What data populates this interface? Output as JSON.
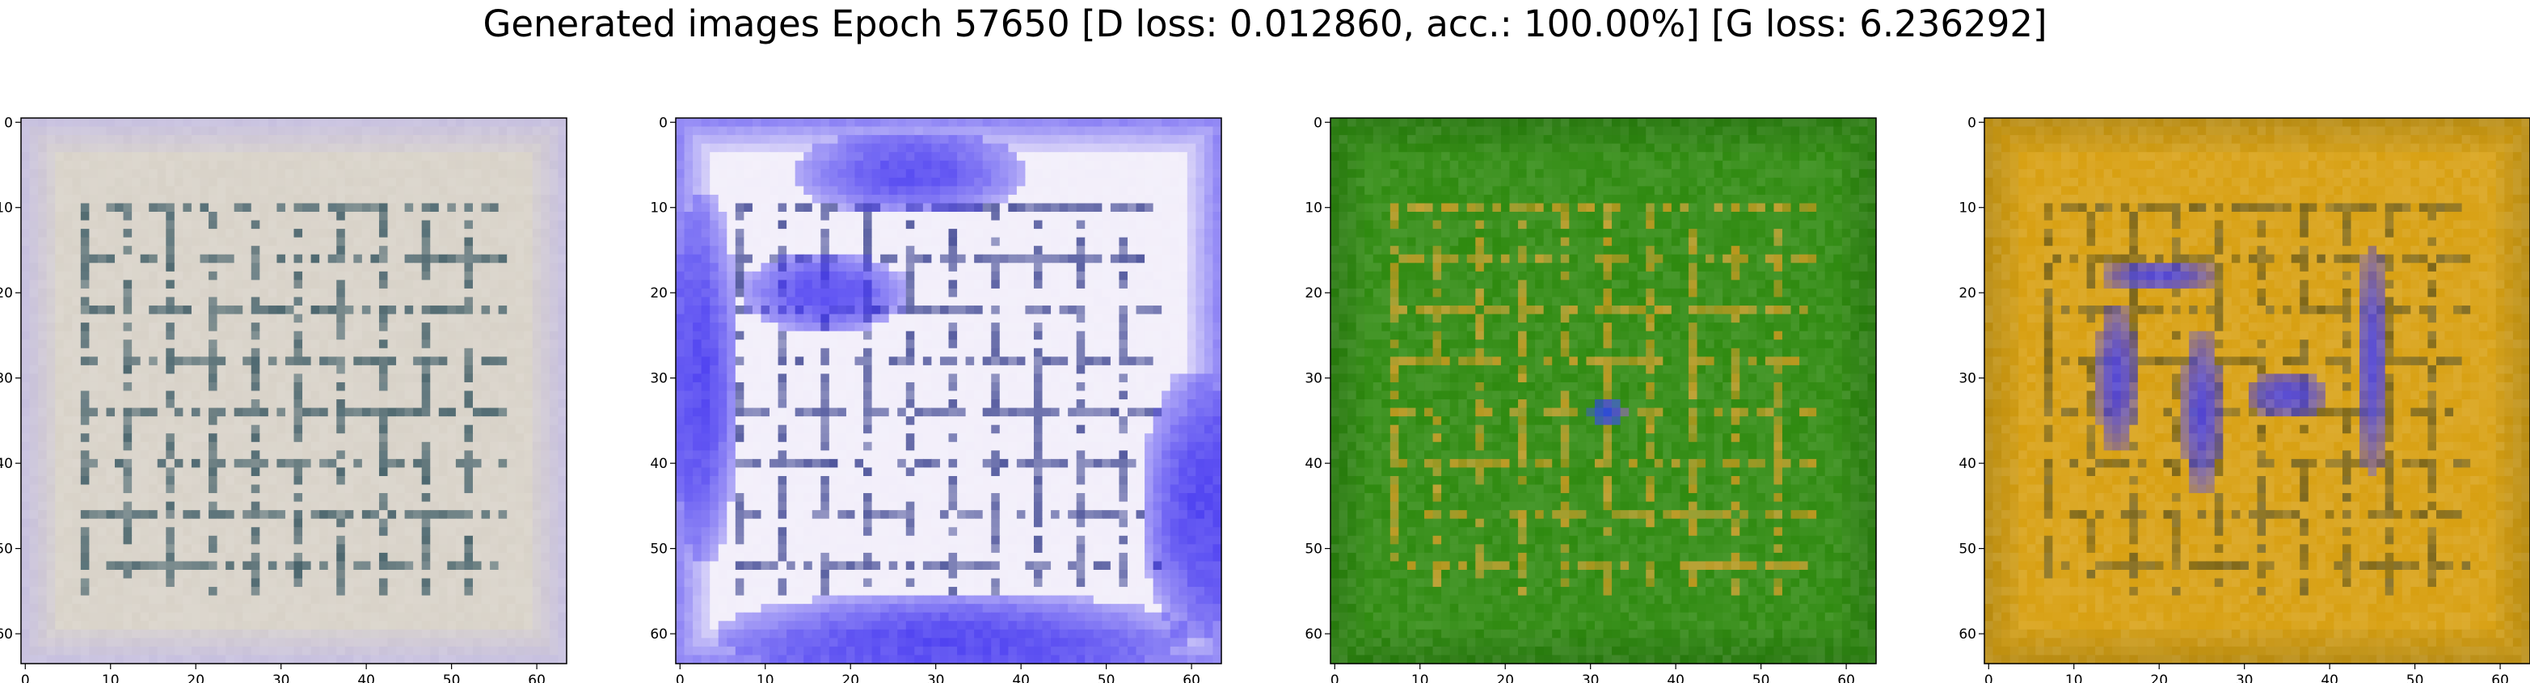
{
  "figure": {
    "title": "Generated images Epoch 57650 [D loss: 0.012860, acc.: 100.00%] [G loss: 6.236292]"
  },
  "chart_data": [
    {
      "type": "heatmap",
      "title": "",
      "xlim": [
        -0.5,
        63.5
      ],
      "ylim": [
        63.5,
        -0.5
      ],
      "x_ticks": [
        0,
        10,
        20,
        30,
        40,
        50,
        60
      ],
      "y_ticks": [
        0,
        10,
        20,
        30,
        40,
        50,
        60
      ],
      "base_color": "#d8d2c8",
      "edge_color": "#b8b0f0",
      "line_color": "#2e4f5a",
      "blob_color": "#c8c4ee"
    },
    {
      "type": "heatmap",
      "title": "",
      "xlim": [
        -0.5,
        63.5
      ],
      "ylim": [
        63.5,
        -0.5
      ],
      "x_ticks": [
        0,
        10,
        20,
        30,
        40,
        50,
        60
      ],
      "y_ticks": [
        0,
        10,
        20,
        30,
        40,
        50,
        60
      ],
      "base_color": "#f2eefa",
      "edge_color": "#3a2cf0",
      "line_color": "#343c8c",
      "blob_color": "#3a2cf0"
    },
    {
      "type": "heatmap",
      "title": "",
      "xlim": [
        -0.5,
        63.5
      ],
      "ylim": [
        63.5,
        -0.5
      ],
      "x_ticks": [
        0,
        10,
        20,
        30,
        40,
        50,
        60
      ],
      "y_ticks": [
        0,
        10,
        20,
        30,
        40,
        50,
        60
      ],
      "base_color": "#2f8a10",
      "edge_color": "#1f6a08",
      "line_color": "#d49a20",
      "blob_color": "#2a3cf4"
    },
    {
      "type": "heatmap",
      "title": "",
      "xlim": [
        -0.5,
        63.5
      ],
      "ylim": [
        63.5,
        -0.5
      ],
      "x_ticks": [
        0,
        10,
        20,
        30,
        40,
        50,
        60
      ],
      "y_ticks": [
        0,
        10,
        20,
        30,
        40,
        50,
        60
      ],
      "base_color": "#d8a012",
      "edge_color": "#a07a0c",
      "line_color": "#6a5a1a",
      "blob_color": "#3a34f2"
    }
  ]
}
